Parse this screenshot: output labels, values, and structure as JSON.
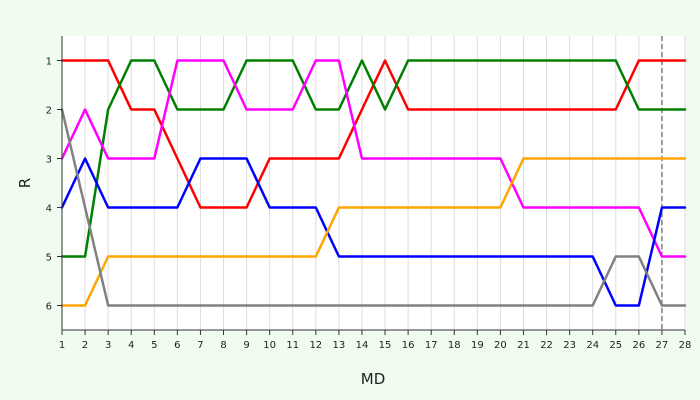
{
  "chart_data": {
    "type": "line",
    "title": "",
    "xlabel": "MD",
    "ylabel": "R",
    "x": [
      1,
      2,
      3,
      4,
      5,
      6,
      7,
      8,
      9,
      10,
      11,
      12,
      13,
      14,
      15,
      16,
      17,
      18,
      19,
      20,
      21,
      22,
      23,
      24,
      25,
      26,
      27,
      28
    ],
    "xlim": [
      1,
      28
    ],
    "ylim": [
      6.5,
      0.5
    ],
    "y_inverted": true,
    "yticks": [
      1,
      2,
      3,
      4,
      5,
      6
    ],
    "grid": "vertical",
    "legend": "none",
    "reference_line": {
      "x": 27,
      "style": "dashed",
      "color": "#808080"
    },
    "series": [
      {
        "color": "#ff0000",
        "values": [
          1,
          1,
          1,
          2,
          2,
          3,
          4,
          4,
          4,
          3,
          3,
          3,
          3,
          2,
          1,
          2,
          2,
          2,
          2,
          2,
          2,
          2,
          2,
          2,
          2,
          1,
          1,
          1
        ]
      },
      {
        "color": "#008000",
        "values": [
          5,
          5,
          2,
          1,
          1,
          2,
          2,
          2,
          1,
          1,
          1,
          2,
          2,
          1,
          2,
          1,
          1,
          1,
          1,
          1,
          1,
          1,
          1,
          1,
          1,
          2,
          2,
          2
        ]
      },
      {
        "color": "#ff00ff",
        "values": [
          3,
          2,
          3,
          3,
          3,
          1,
          1,
          1,
          2,
          2,
          2,
          1,
          1,
          3,
          3,
          3,
          3,
          3,
          3,
          3,
          4,
          4,
          4,
          4,
          4,
          4,
          5,
          5
        ]
      },
      {
        "color": "#0000ff",
        "values": [
          4,
          3,
          4,
          4,
          4,
          4,
          3,
          3,
          3,
          4,
          4,
          4,
          5,
          5,
          5,
          5,
          5,
          5,
          5,
          5,
          5,
          5,
          5,
          5,
          6,
          6,
          4,
          4
        ]
      },
      {
        "color": "#ffa500",
        "values": [
          6,
          6,
          5,
          5,
          5,
          5,
          5,
          5,
          5,
          5,
          5,
          5,
          4,
          4,
          4,
          4,
          4,
          4,
          4,
          4,
          3,
          3,
          3,
          3,
          3,
          3,
          3,
          3
        ]
      },
      {
        "color": "#808080",
        "values": [
          2,
          4,
          6,
          6,
          6,
          6,
          6,
          6,
          6,
          6,
          6,
          6,
          6,
          6,
          6,
          6,
          6,
          6,
          6,
          6,
          6,
          6,
          6,
          6,
          5,
          5,
          6,
          6
        ]
      }
    ]
  }
}
